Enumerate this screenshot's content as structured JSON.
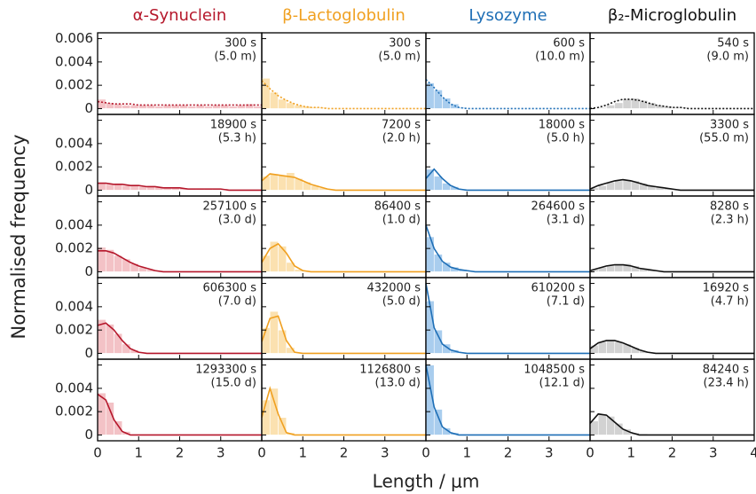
{
  "axes": {
    "xlabel": "Length / μm",
    "ylabel": "Normalised frequency",
    "xlim": [
      0,
      4
    ],
    "xticks": [
      0,
      1,
      2,
      3,
      4
    ],
    "ylim": [
      -0.0005,
      0.0065
    ],
    "yticks": [
      0,
      0.002,
      0.004,
      0.006
    ],
    "bins": [
      0,
      0.2,
      0.4,
      0.6,
      0.8,
      1,
      1.2,
      1.4,
      1.6,
      1.8,
      2,
      2.2,
      2.4,
      2.6,
      2.8,
      3,
      3.2,
      3.4,
      3.6,
      3.8,
      4
    ]
  },
  "chart_data": [
    {
      "type": "histogram",
      "title": "α-Synuclein",
      "color": "#b5172b",
      "fill": "#f3c2c6",
      "panels": [
        {
          "annotation": [
            "300 s",
            "(5.0 m)"
          ],
          "curve_style": "dotted",
          "values": [
            0.0008,
            0.0005,
            0.0004,
            0.0003,
            0.0003,
            0.0003,
            0.0003,
            0.0002,
            0.0003,
            0.0003,
            0.0003,
            0.0002,
            0.0003,
            0.0002,
            0.0003,
            0.0003,
            0.0002,
            0.0003,
            0.0004,
            0.0002
          ],
          "curve": [
            0.0006,
            0.0005,
            0.0004,
            0.0004,
            0.0004,
            0.0003,
            0.0003,
            0.0003,
            0.0003,
            0.0003,
            0.0003,
            0.0003,
            0.0003,
            0.0003,
            0.0003,
            0.0003,
            0.0003,
            0.0003,
            0.0003,
            0.0003,
            0.0003
          ]
        },
        {
          "annotation": [
            "18900 s",
            "(5.3 h)"
          ],
          "curve_style": "solid",
          "values": [
            0.0006,
            0.0005,
            0.0005,
            0.0004,
            0.0004,
            0.0003,
            0.0003,
            0.0003,
            0.0002,
            0.0002,
            0.0002,
            0.0001,
            0.0001,
            0.0001,
            0.0001,
            0.0001,
            0,
            0,
            0,
            0
          ],
          "curve": [
            0.0006,
            0.0006,
            0.0005,
            0.0005,
            0.0004,
            0.0004,
            0.0003,
            0.0003,
            0.0002,
            0.0002,
            0.0002,
            0.0001,
            0.0001,
            0.0001,
            0.0001,
            0.0001,
            0,
            0,
            0,
            0,
            0
          ]
        },
        {
          "annotation": [
            "257100 s",
            "(3.0 d)"
          ],
          "curve_style": "solid",
          "values": [
            0.0021,
            0.0019,
            0.0014,
            0.0011,
            0.0007,
            0.0004,
            0.0002,
            0.0001,
            5e-05,
            0,
            0,
            0,
            0,
            0,
            0,
            0,
            0,
            0,
            0,
            0
          ],
          "curve": [
            0.0018,
            0.0018,
            0.0016,
            0.0012,
            0.0008,
            0.0005,
            0.0003,
            0.0001,
            0,
            0,
            0,
            0,
            0,
            0,
            0,
            0,
            0,
            0,
            0,
            0,
            0
          ]
        },
        {
          "annotation": [
            "606300 s",
            "(7.0 d)"
          ],
          "curve_style": "solid",
          "values": [
            0.0029,
            0.0025,
            0.0017,
            0.0008,
            0.0003,
            0.0001,
            0,
            0,
            0,
            0,
            0,
            0,
            0,
            0,
            0,
            0,
            0,
            0,
            0,
            0
          ],
          "curve": [
            0.0024,
            0.0026,
            0.002,
            0.0011,
            0.0004,
            0.0001,
            0,
            0,
            0,
            0,
            0,
            0,
            0,
            0,
            0,
            0,
            0,
            0,
            0,
            0,
            0
          ]
        },
        {
          "annotation": [
            "1293300 s",
            "(15.0 d)"
          ],
          "curve_style": "solid",
          "values": [
            0.0036,
            0.0028,
            0.0012,
            0.0003,
            0,
            0,
            0,
            0,
            0,
            0,
            0,
            0,
            0,
            0,
            0,
            0,
            0,
            0,
            0,
            0
          ],
          "curve": [
            0.0035,
            0.003,
            0.0013,
            0.0003,
            0,
            0,
            0,
            0,
            0,
            0,
            0,
            0,
            0,
            0,
            0,
            0,
            0,
            0,
            0,
            0,
            0
          ]
        }
      ]
    },
    {
      "type": "histogram",
      "title": "β-Lactoglobulin",
      "color": "#f0a020",
      "fill": "#fbe1b0",
      "panels": [
        {
          "annotation": [
            "300 s",
            "(5.0 m)"
          ],
          "curve_style": "dotted",
          "values": [
            0.0026,
            0.0014,
            0.0008,
            0.0005,
            0.0003,
            0.0002,
            0.0001,
            0.0001,
            0,
            0,
            0,
            0,
            0,
            0,
            0,
            0,
            0,
            0,
            0,
            0
          ],
          "curve": [
            0.0024,
            0.0017,
            0.0011,
            0.0007,
            0.0004,
            0.0002,
            0.0001,
            0.0001,
            0,
            0,
            0,
            0,
            0,
            0,
            0,
            0,
            0,
            0,
            0,
            0,
            0
          ]
        },
        {
          "annotation": [
            "7200 s",
            "(2.0 h)"
          ],
          "curve_style": "solid",
          "values": [
            0.0012,
            0.0014,
            0.0013,
            0.0015,
            0.001,
            0.0007,
            0.0004,
            0.0002,
            0.0001,
            0,
            0,
            0,
            0,
            0,
            0,
            0,
            0,
            0,
            0,
            0
          ],
          "curve": [
            0.0008,
            0.0014,
            0.0013,
            0.0012,
            0.0011,
            0.0008,
            0.0005,
            0.0003,
            0.0001,
            0,
            0,
            0,
            0,
            0,
            0,
            0,
            0,
            0,
            0,
            0,
            0
          ]
        },
        {
          "annotation": [
            "86400 s",
            "(1.0 d)"
          ],
          "curve_style": "solid",
          "values": [
            0.0014,
            0.0026,
            0.0022,
            0.0008,
            0.0002,
            0,
            0,
            0,
            0,
            0,
            0,
            0,
            0,
            0,
            0,
            0,
            0,
            0,
            0,
            0
          ],
          "curve": [
            0.0008,
            0.002,
            0.0024,
            0.0016,
            0.0005,
            0.0001,
            0,
            0,
            0,
            0,
            0,
            0,
            0,
            0,
            0,
            0,
            0,
            0,
            0,
            0,
            0
          ]
        },
        {
          "annotation": [
            "432000 s",
            "(5.0 d)"
          ],
          "curve_style": "solid",
          "values": [
            0.0022,
            0.0036,
            0.002,
            0.0005,
            0,
            0,
            0,
            0,
            0,
            0,
            0,
            0,
            0,
            0,
            0,
            0,
            0,
            0,
            0,
            0
          ],
          "curve": [
            0.001,
            0.003,
            0.0032,
            0.0011,
            0.0001,
            0,
            0,
            0,
            0,
            0,
            0,
            0,
            0,
            0,
            0,
            0,
            0,
            0,
            0,
            0,
            0
          ]
        },
        {
          "annotation": [
            "1126800 s",
            "(13.0 d)"
          ],
          "curve_style": "solid",
          "values": [
            0.003,
            0.004,
            0.0015,
            0.0002,
            0,
            0,
            0,
            0,
            0,
            0,
            0,
            0,
            0,
            0,
            0,
            0,
            0,
            0,
            0,
            0
          ],
          "curve": [
            0.0015,
            0.004,
            0.0018,
            0.0002,
            0,
            0,
            0,
            0,
            0,
            0,
            0,
            0,
            0,
            0,
            0,
            0,
            0,
            0,
            0,
            0,
            0
          ]
        }
      ]
    },
    {
      "type": "histogram",
      "title": "Lysozyme",
      "color": "#1f6fb6",
      "fill": "#a9cdee",
      "panels": [
        {
          "annotation": [
            "600 s",
            "(10.0 m)"
          ],
          "curve_style": "dotted",
          "values": [
            0.0022,
            0.0016,
            0.0009,
            0.0004,
            0.0001,
            0,
            0,
            0,
            0,
            0,
            0,
            0,
            0,
            0,
            0,
            0,
            0,
            0,
            0,
            0
          ],
          "curve": [
            0.0025,
            0.0018,
            0.001,
            0.0004,
            0.0001,
            0,
            0,
            0,
            0,
            0,
            0,
            0,
            0,
            0,
            0,
            0,
            0,
            0,
            0,
            0,
            0
          ]
        },
        {
          "annotation": [
            "18000 s",
            "(5.0 h)"
          ],
          "curve_style": "solid",
          "values": [
            0.0018,
            0.0012,
            0.0006,
            0.0003,
            0.0001,
            0,
            0,
            0,
            0,
            0,
            0,
            0,
            0,
            0,
            0,
            0,
            0,
            0,
            0,
            0
          ],
          "curve": [
            0.001,
            0.0018,
            0.001,
            0.0004,
            0.0001,
            0,
            0,
            0,
            0,
            0,
            0,
            0,
            0,
            0,
            0,
            0,
            0,
            0,
            0,
            0,
            0
          ]
        },
        {
          "annotation": [
            "264600 s",
            "(3.1 d)"
          ],
          "curve_style": "solid",
          "values": [
            0.003,
            0.0015,
            0.0008,
            0.0004,
            0.0002,
            0.0001,
            0,
            0,
            0,
            0,
            0,
            0,
            0,
            0,
            0,
            0,
            0,
            0,
            0,
            0
          ],
          "curve": [
            0.004,
            0.002,
            0.0009,
            0.0004,
            0.0002,
            0.0001,
            0,
            0,
            0,
            0,
            0,
            0,
            0,
            0,
            0,
            0,
            0,
            0,
            0,
            0,
            0
          ]
        },
        {
          "annotation": [
            "610200 s",
            "(7.1 d)"
          ],
          "curve_style": "solid",
          "values": [
            0.0045,
            0.002,
            0.0008,
            0.0003,
            0.0001,
            0,
            0,
            0,
            0,
            0,
            0,
            0,
            0,
            0,
            0,
            0,
            0,
            0,
            0,
            0
          ],
          "curve": [
            0.006,
            0.0022,
            0.0008,
            0.0003,
            0.0001,
            0,
            0,
            0,
            0,
            0,
            0,
            0,
            0,
            0,
            0,
            0,
            0,
            0,
            0,
            0,
            0
          ]
        },
        {
          "annotation": [
            "1048500 s",
            "(12.1 d)"
          ],
          "curve_style": "solid",
          "values": [
            0.006,
            0.0022,
            0.0006,
            0.0002,
            0,
            0,
            0,
            0,
            0,
            0,
            0,
            0,
            0,
            0,
            0,
            0,
            0,
            0,
            0,
            0
          ],
          "curve": [
            0.006,
            0.0024,
            0.0007,
            0.0002,
            0,
            0,
            0,
            0,
            0,
            0,
            0,
            0,
            0,
            0,
            0,
            0,
            0,
            0,
            0,
            0,
            0
          ]
        }
      ]
    },
    {
      "type": "histogram",
      "title": "β₂-Microglobulin",
      "color": "#111111",
      "fill": "#d2d2d2",
      "panels": [
        {
          "annotation": [
            "540 s",
            "(9.0 m)"
          ],
          "curve_style": "dotted",
          "values": [
            0,
            0.0001,
            0.0003,
            0.0005,
            0.0008,
            0.0009,
            0.0007,
            0.0005,
            0.0003,
            0.0002,
            0.0001,
            0.0001,
            0,
            0,
            0,
            0,
            0,
            0,
            0,
            0
          ],
          "curve": [
            0,
            0.0001,
            0.0003,
            0.0006,
            0.0008,
            0.0008,
            0.0007,
            0.0005,
            0.0003,
            0.0002,
            0.0001,
            0.0001,
            0,
            0,
            0,
            0,
            0,
            0,
            0,
            0,
            0
          ]
        },
        {
          "annotation": [
            "3300 s",
            "(55.0 m)"
          ],
          "curve_style": "solid",
          "values": [
            0.0002,
            0.0004,
            0.0007,
            0.0008,
            0.0009,
            0.0008,
            0.0006,
            0.0004,
            0.0003,
            0.0002,
            0.0001,
            0,
            0,
            0,
            0,
            0,
            0,
            0,
            0,
            0
          ],
          "curve": [
            0.0001,
            0.0004,
            0.0006,
            0.0008,
            0.0009,
            0.0008,
            0.0006,
            0.0004,
            0.0003,
            0.0002,
            0.0001,
            0,
            0,
            0,
            0,
            0,
            0,
            0,
            0,
            0,
            0
          ]
        },
        {
          "annotation": [
            "8280 s",
            "(2.3 h)"
          ],
          "curve_style": "solid",
          "values": [
            0.0002,
            0.0004,
            0.0005,
            0.0006,
            0.0007,
            0.0005,
            0.0003,
            0.0002,
            0.0001,
            0,
            0,
            0,
            0,
            0,
            0,
            0,
            0,
            0,
            0,
            0
          ],
          "curve": [
            0.0001,
            0.0003,
            0.0005,
            0.0006,
            0.0006,
            0.0005,
            0.0003,
            0.0002,
            0.0001,
            0,
            0,
            0,
            0,
            0,
            0,
            0,
            0,
            0,
            0,
            0,
            0
          ]
        },
        {
          "annotation": [
            "16920 s",
            "(4.7 h)"
          ],
          "curve_style": "solid",
          "values": [
            0.0007,
            0.001,
            0.0011,
            0.001,
            0.0008,
            0.0005,
            0.0002,
            0.0001,
            0,
            0,
            0,
            0,
            0,
            0,
            0,
            0,
            0,
            0,
            0,
            0
          ],
          "curve": [
            0.0004,
            0.0009,
            0.0011,
            0.0011,
            0.0009,
            0.0006,
            0.0003,
            0.0001,
            0,
            0,
            0,
            0,
            0,
            0,
            0,
            0,
            0,
            0,
            0,
            0,
            0
          ]
        },
        {
          "annotation": [
            "84240 s",
            "(23.4 h)"
          ],
          "curve_style": "solid",
          "values": [
            0.0012,
            0.0018,
            0.0016,
            0.001,
            0.0005,
            0.0002,
            0.0001,
            0,
            0,
            0,
            0,
            0,
            0,
            0,
            0,
            0,
            0,
            0,
            0,
            0
          ],
          "curve": [
            0.001,
            0.0018,
            0.0017,
            0.0011,
            0.0005,
            0.0002,
            0,
            0,
            0,
            0,
            0,
            0,
            0,
            0,
            0,
            0,
            0,
            0,
            0,
            0,
            0
          ]
        }
      ]
    }
  ]
}
